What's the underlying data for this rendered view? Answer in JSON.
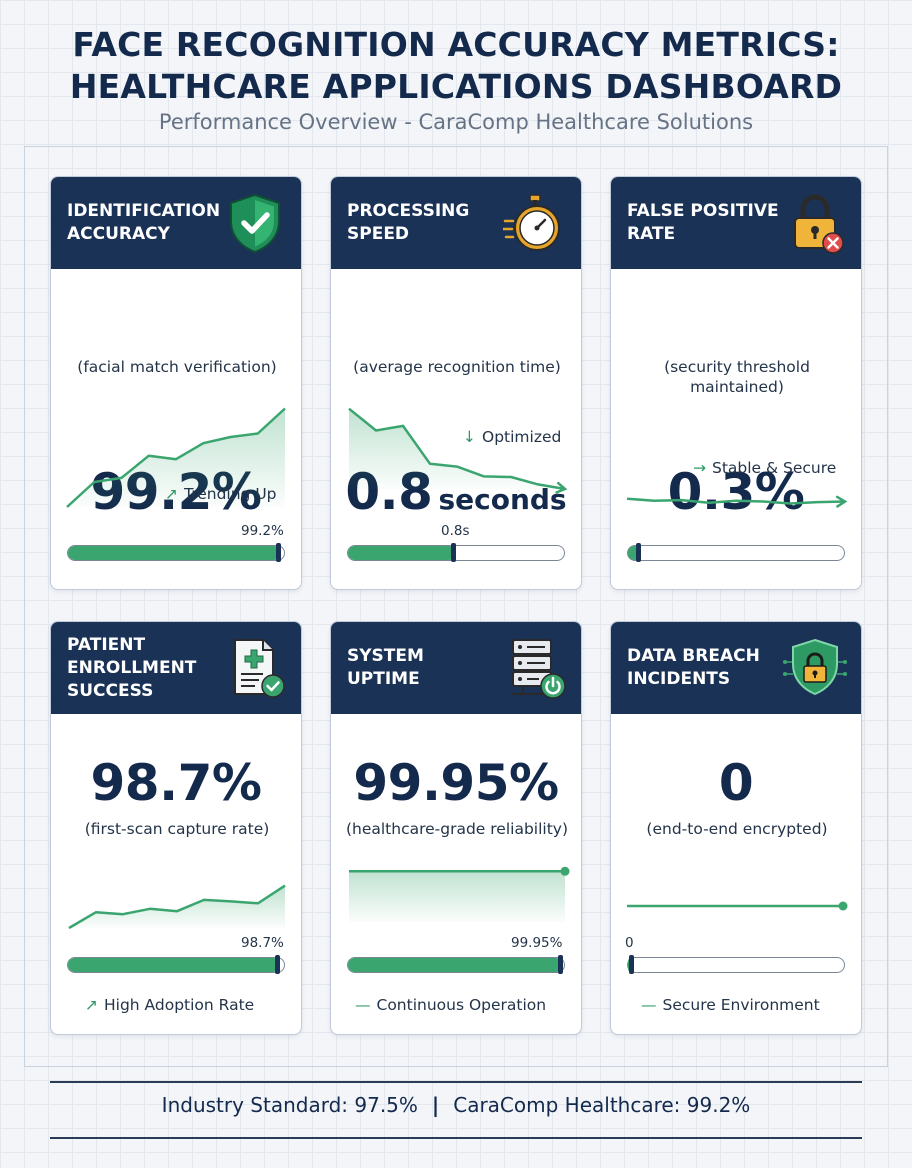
{
  "header": {
    "title_line1": "FACE RECOGNITION ACCURACY METRICS:",
    "title_line2": "HEALTHCARE APPLICATIONS DASHBOARD",
    "subtitle": "Performance Overview - CaraComp Healthcare Solutions"
  },
  "colors": {
    "navy": "#1b3257",
    "green": "#3aa56f",
    "text": "#142a4c",
    "muted": "#667385"
  },
  "cards": [
    {
      "label": "IDENTIFICATION\nACCURACY",
      "icon": "shield-check-icon",
      "value": "99.2%",
      "unit": "",
      "caption": "(facial match verification)",
      "trend_label": "Trending Up",
      "trend_icon": "trend-up-icon",
      "bar_label": "99.2%",
      "bar_fraction": 0.992
    },
    {
      "label": "PROCESSING\nSPEED",
      "icon": "stopwatch-icon",
      "value": "0.8",
      "unit": "seconds",
      "caption": "(average recognition time)",
      "trend_label": "Optimized",
      "trend_icon": "arrow-down-icon",
      "bar_label": "0.8s",
      "bar_fraction": 0.5
    },
    {
      "label": "FALSE POSITIVE\nRATE",
      "icon": "padlock-x-icon",
      "value": "0.3%",
      "unit": "",
      "caption": "(security threshold maintained)",
      "trend_label": "Stable & Secure",
      "trend_icon": "arrow-right-icon",
      "bar_label": "",
      "bar_fraction": 0.06
    },
    {
      "label": "PATIENT\nENROLLMENT\nSUCCESS",
      "icon": "document-check-icon",
      "value": "98.7%",
      "unit": "",
      "caption": "(first-scan capture rate)",
      "trend_label": "High Adoption Rate",
      "trend_icon": "trend-up-icon",
      "bar_label": "98.7%",
      "bar_fraction": 0.987
    },
    {
      "label": "SYSTEM\nUPTIME",
      "icon": "server-power-icon",
      "value": "99.95%",
      "unit": "",
      "caption": "(healthcare-grade reliability)",
      "trend_label": "Continuous Operation",
      "trend_icon": "dash-icon",
      "bar_label": "99.95%",
      "bar_fraction": 0.9995
    },
    {
      "label": "DATA BREACH\nINCIDENTS",
      "icon": "shield-lock-icon",
      "value": "0",
      "unit": "",
      "caption": "(end-to-end encrypted)",
      "trend_label": "Secure Environment",
      "trend_icon": "dash-icon",
      "bar_label": "0",
      "bar_fraction": 0.0
    }
  ],
  "chart_data": [
    {
      "type": "area",
      "title": "Identification Accuracy",
      "x": [
        0,
        1,
        2,
        3,
        4,
        5,
        6,
        7,
        8
      ],
      "values": [
        0,
        3.6,
        4.2,
        7.4,
        6.9,
        9.2,
        10.1,
        10.6,
        14.2
      ],
      "ylim": [
        0,
        15
      ],
      "annotation": "Trending Up",
      "progress_label": "99.2%"
    },
    {
      "type": "area",
      "title": "Processing Speed",
      "x": [
        0,
        1,
        2,
        3,
        4,
        5,
        6,
        7,
        8
      ],
      "values": [
        14,
        10.2,
        11,
        4.4,
        3.9,
        2.2,
        2.1,
        0.8,
        0
      ],
      "ylim": [
        0,
        15
      ],
      "annotation": "Optimized",
      "progress_label": "0.8s"
    },
    {
      "type": "line",
      "title": "False Positive Rate",
      "x": [
        0,
        1,
        2,
        3,
        4,
        5,
        6,
        7,
        8
      ],
      "values": [
        1.2,
        0.9,
        1.0,
        0.6,
        0.9,
        0.8,
        0.5,
        0.7,
        0.8
      ],
      "ylim": [
        0,
        15
      ],
      "annotation": "Stable & Secure"
    },
    {
      "type": "area",
      "title": "Patient Enrollment Success",
      "x": [
        0,
        1,
        2,
        3,
        4,
        5,
        6,
        7,
        8
      ],
      "values": [
        0,
        3.2,
        2.8,
        3.9,
        3.4,
        5.7,
        5.4,
        5.0,
        8.6
      ],
      "ylim": [
        0,
        15
      ],
      "progress_label": "98.7%"
    },
    {
      "type": "area",
      "title": "System Uptime",
      "x": [
        0,
        8
      ],
      "values": [
        10,
        10
      ],
      "ylim": [
        0,
        15
      ],
      "progress_label": "99.95%"
    },
    {
      "type": "line",
      "title": "Data Breach Incidents",
      "x": [
        0,
        8
      ],
      "values": [
        5,
        5
      ],
      "ylim": [
        0,
        15
      ],
      "progress_label": "0"
    }
  ],
  "footer": {
    "industry": "Industry Standard: 97.5%",
    "separator": "|",
    "caracomp": "CaraComp Healthcare: 99.2%"
  }
}
